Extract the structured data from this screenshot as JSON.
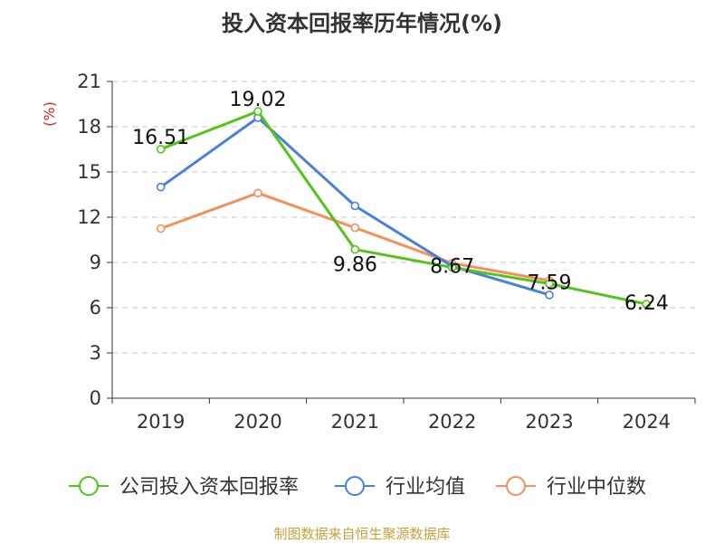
{
  "title": "投入资本回报率历年情况(%)",
  "source": "制图数据来自恒生聚源数据库",
  "chart_data": {
    "type": "line",
    "title": "投入资本回报率历年情况(%)",
    "ylabel": "(%)",
    "xlabel": "",
    "categories": [
      "2019",
      "2020",
      "2021",
      "2022",
      "2023",
      "2024"
    ],
    "ylim": [
      0,
      21
    ],
    "yticks": [
      0,
      3,
      6,
      9,
      12,
      15,
      18,
      21
    ],
    "grid": true,
    "legend_position": "bottom",
    "series": [
      {
        "name": "公司投入资本回报率",
        "color": "#52c41a",
        "values": [
          16.51,
          19.02,
          9.86,
          8.67,
          7.59,
          6.24
        ],
        "labels": [
          "16.51",
          "19.02",
          "9.86",
          "8.67",
          "7.59",
          "6.24"
        ]
      },
      {
        "name": "行业均值",
        "color": "#4a7fdb",
        "values": [
          14.0,
          18.6,
          12.75,
          8.75,
          6.85,
          null
        ]
      },
      {
        "name": "行业中位数",
        "color": "#f5905a",
        "values": [
          11.25,
          13.6,
          11.3,
          8.95,
          7.8,
          null
        ]
      }
    ]
  }
}
